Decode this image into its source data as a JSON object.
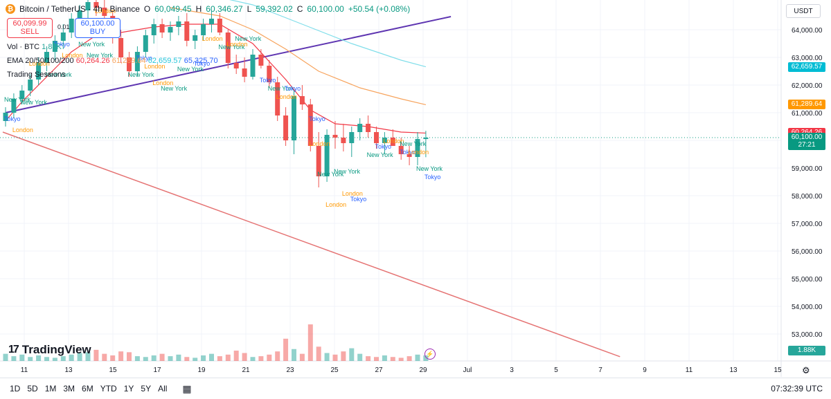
{
  "header": {
    "symbol": "Bitcoin / TetherUS · 4h · Binance",
    "ohlc_open": "60,049.45",
    "ohlc_high": "60,346.27",
    "ohlc_low": "59,392.02",
    "ohlc_close": "60,100.00",
    "ohlc_change": "+50.54 (+0.08%)"
  },
  "trade": {
    "sell_price": "60,099.99",
    "sell_label": "SELL",
    "spread": "0.01",
    "buy_price": "60,100.00",
    "buy_label": "BUY"
  },
  "indicators": {
    "volume_label": "Vol · BTC",
    "volume_value": "1.88K",
    "ema_label": "EMA 20/50/100/200",
    "ema20": "60,264.26",
    "ema50": "61,289.64",
    "ema100": "62,659.57",
    "ema200": "65,325.70",
    "sessions_label": "Trading Sessions"
  },
  "currency_button": "USDT",
  "brand": "TradingView",
  "range_buttons": [
    "1D",
    "5D",
    "1M",
    "3M",
    "6M",
    "YTD",
    "1Y",
    "5Y",
    "All"
  ],
  "clock": "07:32:39 UTC",
  "colors": {
    "up": "#26a69a",
    "down": "#ef5350",
    "ema20": "#f23645",
    "ema50": "#f7a35c",
    "ema100": "#80deea",
    "trendline_upper": "#5e35b1",
    "trendline_lower": "#e57373",
    "tokyo": "#2962ff",
    "london": "#ff9800",
    "newyork": "#089981"
  },
  "chart_data": {
    "type": "candlestick",
    "title": "Bitcoin / TetherUS · 4h · Binance",
    "y_ticks": [
      53000,
      54000,
      55000,
      56000,
      57000,
      58000,
      59000,
      60000,
      61000,
      62000,
      63000,
      64000
    ],
    "y_tick_labels": [
      "53,000.00",
      "54,000.00",
      "55,000.00",
      "56,000.00",
      "57,000.00",
      "58,000.00",
      "59,000.00",
      "60,000.00",
      "61,000.00",
      "62,000.00",
      "63,000.00",
      "64,000.00"
    ],
    "x_tick_labels": [
      "11",
      "13",
      "15",
      "17",
      "19",
      "21",
      "23",
      "25",
      "27",
      "29",
      "Jul",
      "3",
      "5",
      "7",
      "9",
      "11",
      "13",
      "15"
    ],
    "price_tags": [
      {
        "value": "62,659.57",
        "price": 62659.57,
        "color": "#00bcd4"
      },
      {
        "value": "61,289.64",
        "price": 61289.64,
        "color": "#ff9800"
      },
      {
        "value": "60,264.26",
        "price": 60264.26,
        "color": "#f23645"
      },
      {
        "value": "60,100.00",
        "price": 60100.0,
        "color": "#089981"
      },
      {
        "value": "27:21",
        "price": 59820,
        "color": "#089981"
      }
    ],
    "volume_tag": "1.88K",
    "candles": [
      [
        60700,
        61200,
        60500,
        61000
      ],
      [
        61000,
        61700,
        60800,
        61500
      ],
      [
        61500,
        62000,
        61300,
        61800
      ],
      [
        61800,
        62400,
        61600,
        62200
      ],
      [
        62200,
        63000,
        62000,
        62800
      ],
      [
        62800,
        63400,
        62500,
        63200
      ],
      [
        63200,
        63800,
        62900,
        63600
      ],
      [
        63600,
        64200,
        63300,
        63900
      ],
      [
        63900,
        64600,
        63700,
        64400
      ],
      [
        64400,
        64900,
        64100,
        64700
      ],
      [
        64700,
        65200,
        64400,
        65000
      ],
      [
        65000,
        65300,
        64500,
        64800
      ],
      [
        64800,
        65100,
        64300,
        64500
      ],
      [
        64500,
        64700,
        63500,
        63700
      ],
      [
        63700,
        64000,
        62800,
        63000
      ],
      [
        63000,
        63200,
        62300,
        62500
      ],
      [
        62500,
        63400,
        62300,
        63200
      ],
      [
        63200,
        64000,
        63000,
        63800
      ],
      [
        63800,
        64400,
        63500,
        64200
      ],
      [
        64200,
        64400,
        63700,
        63900
      ],
      [
        63900,
        64300,
        63600,
        64100
      ],
      [
        64100,
        64500,
        63800,
        64300
      ],
      [
        64300,
        64600,
        63400,
        63600
      ],
      [
        63600,
        64000,
        63300,
        63800
      ],
      [
        63800,
        64400,
        63600,
        64200
      ],
      [
        64200,
        64700,
        63900,
        64400
      ],
      [
        64400,
        64600,
        63800,
        63900
      ],
      [
        63900,
        64000,
        62600,
        62800
      ],
      [
        62800,
        63100,
        62400,
        62600
      ],
      [
        62600,
        63000,
        62100,
        62300
      ],
      [
        62300,
        63300,
        62200,
        63100
      ],
      [
        63100,
        63300,
        62600,
        62700
      ],
      [
        62700,
        62900,
        61900,
        62100
      ],
      [
        62100,
        62300,
        60700,
        60900
      ],
      [
        60900,
        61200,
        59800,
        60000
      ],
      [
        60000,
        61800,
        59500,
        61600
      ],
      [
        61600,
        62000,
        61100,
        61300
      ],
      [
        61300,
        61500,
        59600,
        59800
      ],
      [
        59800,
        60300,
        58300,
        58700
      ],
      [
        58700,
        60400,
        58500,
        60200
      ],
      [
        60200,
        60700,
        59700,
        60100
      ],
      [
        60100,
        60600,
        59600,
        59900
      ],
      [
        59900,
        60500,
        59400,
        60300
      ],
      [
        60300,
        60800,
        60000,
        60600
      ],
      [
        60600,
        60900,
        60100,
        60300
      ],
      [
        60300,
        60500,
        59700,
        59900
      ],
      [
        59900,
        60300,
        59500,
        60100
      ],
      [
        60100,
        60400,
        59800,
        59800
      ],
      [
        59800,
        60100,
        59300,
        59500
      ],
      [
        59500,
        59800,
        59100,
        59400
      ],
      [
        59400,
        60300,
        59100,
        60049
      ],
      [
        60049,
        60346,
        59392,
        60100
      ]
    ],
    "volumes": [
      9,
      6,
      8,
      5,
      7,
      5,
      4,
      6,
      8,
      10,
      11,
      14,
      9,
      7,
      12,
      11,
      6,
      5,
      7,
      9,
      6,
      8,
      5,
      4,
      7,
      9,
      6,
      8,
      13,
      10,
      5,
      6,
      8,
      12,
      28,
      15,
      9,
      46,
      18,
      10,
      8,
      12,
      16,
      9,
      6,
      5,
      7,
      5,
      4,
      6,
      8,
      7
    ],
    "ema20": [
      [
        0,
        60700
      ],
      [
        2,
        61400
      ],
      [
        5,
        62300
      ],
      [
        8,
        63200
      ],
      [
        11,
        63800
      ],
      [
        14,
        63900
      ],
      [
        18,
        64100
      ],
      [
        22,
        64200
      ],
      [
        26,
        64200
      ],
      [
        30,
        63500
      ],
      [
        34,
        62200
      ],
      [
        37,
        61100
      ],
      [
        40,
        60600
      ],
      [
        44,
        60500
      ],
      [
        48,
        60300
      ],
      [
        51,
        60264
      ]
    ],
    "ema50": [
      [
        20,
        64800
      ],
      [
        26,
        64500
      ],
      [
        30,
        64000
      ],
      [
        34,
        63300
      ],
      [
        38,
        62500
      ],
      [
        43,
        61900
      ],
      [
        48,
        61500
      ],
      [
        51,
        61290
      ]
    ],
    "ema100": [
      [
        24,
        65300
      ],
      [
        30,
        64900
      ],
      [
        36,
        64200
      ],
      [
        42,
        63500
      ],
      [
        48,
        62900
      ],
      [
        51,
        62660
      ]
    ],
    "trend_upper": {
      "from": [
        0,
        61000
      ],
      "to": [
        49,
        64400
      ]
    },
    "trend_lower": {
      "from": [
        0,
        60300
      ],
      "to": [
        67,
        52180
      ]
    },
    "sessions": [
      {
        "i": 0,
        "p": 61400,
        "name": "New York",
        "s": "newyork"
      },
      {
        "i": 0,
        "p": 60700,
        "name": "Tokyo",
        "s": "tokyo"
      },
      {
        "i": 1,
        "p": 60300,
        "name": "London",
        "s": "london"
      },
      {
        "i": 2,
        "p": 61300,
        "name": "New York",
        "s": "newyork"
      },
      {
        "i": 3,
        "p": 62700,
        "name": "London",
        "s": "london"
      },
      {
        "i": 5,
        "p": 62300,
        "name": "New York",
        "s": "newyork"
      },
      {
        "i": 6,
        "p": 63400,
        "name": "Tokyo",
        "s": "tokyo"
      },
      {
        "i": 7,
        "p": 63000,
        "name": "London",
        "s": "london"
      },
      {
        "i": 9,
        "p": 63400,
        "name": "New York",
        "s": "newyork"
      },
      {
        "i": 10,
        "p": 63000,
        "name": "New York",
        "s": "newyork"
      },
      {
        "i": 11,
        "p": 64600,
        "name": "London",
        "s": "london"
      },
      {
        "i": 15,
        "p": 62300,
        "name": "New York",
        "s": "newyork"
      },
      {
        "i": 16,
        "p": 62900,
        "name": "Tokyo",
        "s": "tokyo"
      },
      {
        "i": 17,
        "p": 62600,
        "name": "London",
        "s": "london"
      },
      {
        "i": 18,
        "p": 62000,
        "name": "London",
        "s": "london"
      },
      {
        "i": 19,
        "p": 61800,
        "name": "New York",
        "s": "newyork"
      },
      {
        "i": 21,
        "p": 62500,
        "name": "New York",
        "s": "newyork"
      },
      {
        "i": 23,
        "p": 62700,
        "name": "Tokyo",
        "s": "tokyo"
      },
      {
        "i": 24,
        "p": 63600,
        "name": "London",
        "s": "london"
      },
      {
        "i": 26,
        "p": 63300,
        "name": "New York",
        "s": "newyork"
      },
      {
        "i": 27,
        "p": 63400,
        "name": "London",
        "s": "london"
      },
      {
        "i": 28,
        "p": 63600,
        "name": "New York",
        "s": "newyork"
      },
      {
        "i": 31,
        "p": 62100,
        "name": "Tokyo",
        "s": "tokyo"
      },
      {
        "i": 32,
        "p": 61800,
        "name": "New York",
        "s": "newyork"
      },
      {
        "i": 33,
        "p": 61500,
        "name": "London",
        "s": "london"
      },
      {
        "i": 34,
        "p": 61800,
        "name": "Tokyo",
        "s": "tokyo"
      },
      {
        "i": 37,
        "p": 60700,
        "name": "Tokyo",
        "s": "tokyo"
      },
      {
        "i": 37,
        "p": 59800,
        "name": "London",
        "s": "london"
      },
      {
        "i": 38,
        "p": 58700,
        "name": "New York",
        "s": "newyork"
      },
      {
        "i": 40,
        "p": 58800,
        "name": "New York",
        "s": "newyork"
      },
      {
        "i": 41,
        "p": 58000,
        "name": "London",
        "s": "london"
      },
      {
        "i": 42,
        "p": 57800,
        "name": "Tokyo",
        "s": "tokyo"
      },
      {
        "i": 39,
        "p": 57600,
        "name": "London",
        "s": "london"
      },
      {
        "i": 44,
        "p": 59400,
        "name": "New York",
        "s": "newyork"
      },
      {
        "i": 45,
        "p": 59700,
        "name": "Tokyo",
        "s": "tokyo"
      },
      {
        "i": 46,
        "p": 59900,
        "name": "London",
        "s": "london"
      },
      {
        "i": 48,
        "p": 59800,
        "name": "New York",
        "s": "newyork"
      },
      {
        "i": 48,
        "p": 59500,
        "name": "Tokyo",
        "s": "tokyo"
      },
      {
        "i": 49,
        "p": 59500,
        "name": "London",
        "s": "london"
      },
      {
        "i": 50,
        "p": 58900,
        "name": "New York",
        "s": "newyork"
      },
      {
        "i": 51,
        "p": 58600,
        "name": "Tokyo",
        "s": "tokyo"
      }
    ]
  }
}
